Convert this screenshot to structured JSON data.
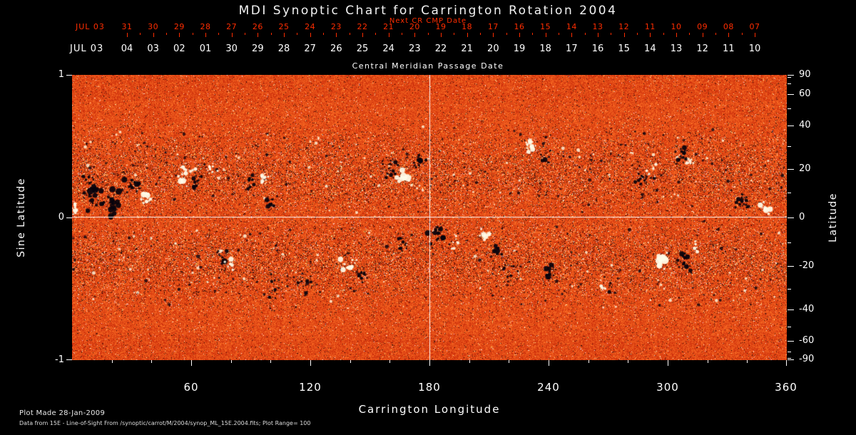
{
  "title": "MDI Synoptic Chart for Carrington Rotation 2004",
  "colors": {
    "background": "#000000",
    "axis_text": "#ffffff",
    "top_axis_red": "#ff2d00",
    "map_negative_polarity": "#07030d",
    "map_positive_polarity": "#fffce8"
  },
  "top_axis": {
    "label": "Next CR CMP Date",
    "month": "JUL 03",
    "ticks": [
      "31",
      "30",
      "29",
      "28",
      "27",
      "26",
      "25",
      "24",
      "23",
      "22",
      "21",
      "20",
      "19",
      "18",
      "17",
      "16",
      "15",
      "14",
      "13",
      "12",
      "11",
      "10",
      "09",
      "08",
      "07"
    ]
  },
  "cmp_axis": {
    "label": "Central Meridian Passage Date",
    "month": "JUL 03",
    "ticks": [
      "04",
      "03",
      "02",
      "01",
      "30",
      "29",
      "28",
      "27",
      "26",
      "25",
      "24",
      "23",
      "22",
      "21",
      "20",
      "19",
      "18",
      "17",
      "16",
      "15",
      "14",
      "13",
      "12",
      "11",
      "10"
    ]
  },
  "left_axis": {
    "label": "Sine Latitude",
    "ticks": [
      {
        "v": 1,
        "label": "1"
      },
      {
        "v": 0,
        "label": "0"
      },
      {
        "v": -1,
        "label": "-1"
      }
    ]
  },
  "right_axis": {
    "label": "Latitude",
    "ticks": [
      {
        "deg": 90,
        "label": "90"
      },
      {
        "deg": 60,
        "label": "60"
      },
      {
        "deg": 40,
        "label": "40"
      },
      {
        "deg": 20,
        "label": "20"
      },
      {
        "deg": 0,
        "label": "0"
      },
      {
        "deg": -20,
        "label": "-20"
      },
      {
        "deg": -40,
        "label": "-40"
      },
      {
        "deg": -60,
        "label": "-60"
      },
      {
        "deg": -90,
        "label": "-90"
      }
    ],
    "minor_deg": [
      80,
      70,
      50,
      30,
      10,
      -10,
      -30,
      -50,
      -70,
      -80
    ]
  },
  "bottom_axis": {
    "label": "Carrington Longitude",
    "ticks": [
      {
        "deg": 60,
        "label": "60"
      },
      {
        "deg": 120,
        "label": "120"
      },
      {
        "deg": 180,
        "label": "180"
      },
      {
        "deg": 240,
        "label": "240"
      },
      {
        "deg": 300,
        "label": "300"
      },
      {
        "deg": 360,
        "label": "360"
      }
    ],
    "minor_step_deg": 20
  },
  "footer": {
    "line1": "Plot Made 28-Jan-2009",
    "line2": "Data from 15E - Line-of-Sight From /synoptic/carrot/M/2004/synop_ML_15E.2004.fits; Plot Range=  100"
  },
  "chart_data": {
    "type": "heatmap",
    "title": "MDI Synoptic Chart for Carrington Rotation 2004",
    "xlabel": "Carrington Longitude",
    "ylabel_left": "Sine Latitude",
    "ylabel_right": "Latitude",
    "x_range_deg": [
      0,
      360
    ],
    "y_range_sine_latitude": [
      -1,
      1
    ],
    "reference_lines": {
      "meridian_deg": 180,
      "equator_sine_latitude": 0
    },
    "colormap": "orange-red quiet sun; black = negative magnetic polarity; white = positive magnetic polarity",
    "plot_range_gauss": 100,
    "active_regions": [
      {
        "lon": 2,
        "slat": 0.06,
        "rx": 1.5,
        "ry": 0.05,
        "n": 16,
        "r": 4,
        "pol": "pos"
      },
      {
        "lon": 11,
        "slat": 0.17,
        "rx": 5,
        "ry": 0.1,
        "n": 46,
        "r": 4.5,
        "pol": "neg"
      },
      {
        "lon": 20,
        "slat": 0.1,
        "rx": 4,
        "ry": 0.07,
        "n": 30,
        "r": 5,
        "pol": "neg"
      },
      {
        "lon": 37,
        "slat": 0.14,
        "rx": 2.2,
        "ry": 0.035,
        "n": 18,
        "r": 5.5,
        "pol": "pos"
      },
      {
        "lon": 30,
        "slat": 0.23,
        "rx": 3,
        "ry": 0.05,
        "n": 18,
        "r": 3.5,
        "pol": "neg"
      },
      {
        "lon": 57,
        "slat": 0.31,
        "rx": 3.5,
        "ry": 0.05,
        "n": 20,
        "r": 4,
        "pol": "pos"
      },
      {
        "lon": 63,
        "slat": 0.26,
        "rx": 2.5,
        "ry": 0.05,
        "n": 14,
        "r": 3,
        "pol": "neg"
      },
      {
        "lon": 70,
        "slat": 0.33,
        "rx": 2.5,
        "ry": 0.04,
        "n": 12,
        "r": 3.5,
        "pol": "pos"
      },
      {
        "lon": 89,
        "slat": 0.26,
        "rx": 2.2,
        "ry": 0.045,
        "n": 14,
        "r": 3.5,
        "pol": "neg"
      },
      {
        "lon": 96,
        "slat": 0.28,
        "rx": 2.2,
        "ry": 0.04,
        "n": 12,
        "r": 4,
        "pol": "pos"
      },
      {
        "lon": 100,
        "slat": 0.1,
        "rx": 1.8,
        "ry": 0.04,
        "n": 10,
        "r": 3,
        "pol": "neg"
      },
      {
        "lon": 160,
        "slat": 0.34,
        "rx": 3,
        "ry": 0.06,
        "n": 22,
        "r": 4,
        "pol": "neg"
      },
      {
        "lon": 167,
        "slat": 0.29,
        "rx": 2.2,
        "ry": 0.045,
        "n": 14,
        "r": 6,
        "pol": "pos"
      },
      {
        "lon": 175,
        "slat": 0.39,
        "rx": 2.6,
        "ry": 0.05,
        "n": 16,
        "r": 3.5,
        "pol": "neg"
      },
      {
        "lon": 231,
        "slat": 0.5,
        "rx": 2.6,
        "ry": 0.04,
        "n": 14,
        "r": 5,
        "pol": "pos"
      },
      {
        "lon": 238,
        "slat": 0.44,
        "rx": 2.6,
        "ry": 0.05,
        "n": 16,
        "r": 3,
        "pol": "neg"
      },
      {
        "lon": 288,
        "slat": 0.29,
        "rx": 3.5,
        "ry": 0.06,
        "n": 20,
        "r": 3.5,
        "pol": "neg"
      },
      {
        "lon": 292,
        "slat": 0.33,
        "rx": 1.8,
        "ry": 0.035,
        "n": 8,
        "r": 3,
        "pol": "pos"
      },
      {
        "lon": 307,
        "slat": 0.45,
        "rx": 3.5,
        "ry": 0.06,
        "n": 18,
        "r": 3.5,
        "pol": "neg"
      },
      {
        "lon": 311,
        "slat": 0.4,
        "rx": 1.8,
        "ry": 0.035,
        "n": 8,
        "r": 3.5,
        "pol": "pos"
      },
      {
        "lon": 338,
        "slat": 0.1,
        "rx": 3.5,
        "ry": 0.06,
        "n": 22,
        "r": 4,
        "pol": "neg"
      },
      {
        "lon": 349,
        "slat": 0.07,
        "rx": 1.8,
        "ry": 0.035,
        "n": 10,
        "r": 4.5,
        "pol": "pos"
      },
      {
        "lon": 76,
        "slat": -0.28,
        "rx": 2.6,
        "ry": 0.05,
        "n": 14,
        "r": 3.5,
        "pol": "neg"
      },
      {
        "lon": 79,
        "slat": -0.33,
        "rx": 1.8,
        "ry": 0.035,
        "n": 8,
        "r": 3.5,
        "pol": "pos"
      },
      {
        "lon": 101,
        "slat": -0.56,
        "rx": 1.6,
        "ry": 0.1,
        "n": 16,
        "r": 3,
        "pol": "neg"
      },
      {
        "lon": 117,
        "slat": -0.45,
        "rx": 4.5,
        "ry": 0.07,
        "n": 18,
        "r": 2.5,
        "pol": "neg"
      },
      {
        "lon": 140,
        "slat": -0.33,
        "rx": 3.5,
        "ry": 0.05,
        "n": 16,
        "r": 4.5,
        "pol": "pos"
      },
      {
        "lon": 146,
        "slat": -0.39,
        "rx": 2.6,
        "ry": 0.05,
        "n": 12,
        "r": 3,
        "pol": "neg"
      },
      {
        "lon": 166,
        "slat": -0.2,
        "rx": 2.6,
        "ry": 0.05,
        "n": 14,
        "r": 3.5,
        "pol": "neg"
      },
      {
        "lon": 185,
        "slat": -0.1,
        "rx": 4.5,
        "ry": 0.06,
        "n": 24,
        "r": 5,
        "pol": "neg"
      },
      {
        "lon": 193,
        "slat": -0.17,
        "rx": 1.8,
        "ry": 0.04,
        "n": 8,
        "r": 3,
        "pol": "pos"
      },
      {
        "lon": 208,
        "slat": -0.12,
        "rx": 2.2,
        "ry": 0.04,
        "n": 10,
        "r": 4,
        "pol": "pos"
      },
      {
        "lon": 214,
        "slat": -0.21,
        "rx": 2.6,
        "ry": 0.05,
        "n": 14,
        "r": 3.5,
        "pol": "neg"
      },
      {
        "lon": 222,
        "slat": -0.36,
        "rx": 4.5,
        "ry": 0.07,
        "n": 16,
        "r": 2.5,
        "pol": "neg"
      },
      {
        "lon": 241,
        "slat": -0.38,
        "rx": 2.2,
        "ry": 0.05,
        "n": 12,
        "r": 4,
        "pol": "neg"
      },
      {
        "lon": 267,
        "slat": -0.48,
        "rx": 1.4,
        "ry": 0.03,
        "n": 6,
        "r": 3,
        "pol": "pos"
      },
      {
        "lon": 271,
        "slat": -0.5,
        "rx": 1.4,
        "ry": 0.03,
        "n": 6,
        "r": 3,
        "pol": "neg"
      },
      {
        "lon": 298,
        "slat": -0.28,
        "rx": 2.6,
        "ry": 0.055,
        "n": 16,
        "r": 5.5,
        "pol": "pos"
      },
      {
        "lon": 308,
        "slat": -0.31,
        "rx": 3.5,
        "ry": 0.065,
        "n": 24,
        "r": 5.5,
        "pol": "neg"
      },
      {
        "lon": 315,
        "slat": -0.22,
        "rx": 1.8,
        "ry": 0.04,
        "n": 8,
        "r": 3,
        "pol": "pos"
      }
    ]
  }
}
